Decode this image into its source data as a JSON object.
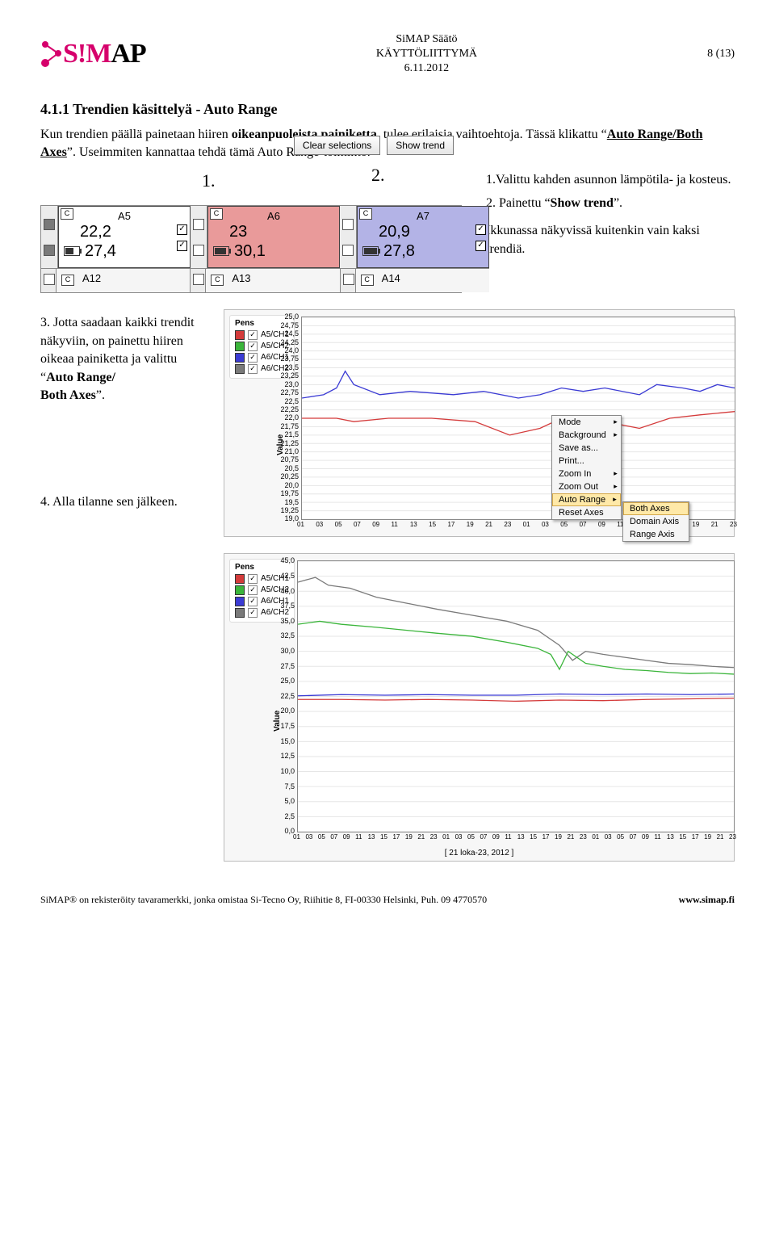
{
  "header": {
    "logo_sim": "S!M",
    "logo_ap": "AP",
    "center_title": "SiMAP Säätö",
    "center_sub": "KÄYTTÖLIITTYMÄ",
    "center_date": "6.11.2012",
    "page": "8 (13)"
  },
  "section_title": "4.1.1 Trendien käsittelyä - Auto Range",
  "intro_1a": "Kun trendien päällä painetaan hiiren ",
  "intro_1b": "oikeanpuoleista painiketta",
  "intro_1c": ", tulee erilaisia vaihtoehtoja. Tässä klikattu “",
  "intro_1d": "Auto Range/Both Axes",
  "intro_1e": "”. Useimmiten kannattaa tehdä tämä Auto Range-toiminto.",
  "annot_1": "1.",
  "annot_2": "2.",
  "right_1": "1.Valittu kahden asunnon lämpötila- ja kosteus.",
  "right_2a": "2. Painettu “",
  "right_2b": "Show trend",
  "right_2c": "”.",
  "right_3": "Ikkunassa näkyvissä kuitenkin vain kaksi trendiä.",
  "step3_a": "3. Jotta saadaan kaikki trendit näkyviin, on painettu hiiren oikeaa painiketta ja valittu “",
  "step3_b": "Auto Range/",
  "step3_c": "Both Axes",
  "step3_d": "”.",
  "step4": "4. Alla tilanne sen jälkeen.",
  "buttons": {
    "clear": "Clear selections",
    "show": "Show trend"
  },
  "cards": {
    "a5": {
      "label": "A5",
      "v1": "22,2",
      "v2": "27,4",
      "bg": "#fff",
      "bat": 0.55
    },
    "a6": {
      "label": "A6",
      "v1": "23",
      "v2": "30,1",
      "bg": "#e99a9a",
      "bat": 0.8
    },
    "a7": {
      "label": "A7",
      "v1": "20,9",
      "v2": "27,8",
      "bg": "#b3b3e6",
      "bat": 0.9
    },
    "row2": [
      "A12",
      "A13",
      "A14"
    ]
  },
  "pens": {
    "title": "Pens",
    "items": [
      {
        "label": "A5/CH1",
        "color": "#d43b3b"
      },
      {
        "label": "A5/CH2",
        "color": "#3bb53b"
      },
      {
        "label": "A6/CH1",
        "color": "#3b3bd4"
      },
      {
        "label": "A6/CH2",
        "color": "#7a7a7a"
      }
    ]
  },
  "chart1": {
    "ylabel": "Value",
    "ymin": 19.0,
    "ymax": 25.0,
    "ystep": 0.25,
    "bg": "#ffffff",
    "grid": "#e6e6e6",
    "xticks": [
      "01",
      "03",
      "05",
      "07",
      "09",
      "11",
      "13",
      "15",
      "17",
      "19",
      "21",
      "23",
      "01",
      "03",
      "05",
      "07",
      "09",
      "11",
      "13",
      "15",
      "17",
      "19",
      "21",
      "23"
    ],
    "series": [
      {
        "color": "#d43b3b",
        "pts": [
          [
            0,
            22.0
          ],
          [
            0.08,
            22.0
          ],
          [
            0.12,
            21.9
          ],
          [
            0.2,
            22.0
          ],
          [
            0.3,
            22.0
          ],
          [
            0.4,
            21.9
          ],
          [
            0.48,
            21.5
          ],
          [
            0.55,
            21.7
          ],
          [
            0.6,
            22.0
          ],
          [
            0.7,
            21.9
          ],
          [
            0.78,
            21.7
          ],
          [
            0.85,
            22.0
          ],
          [
            0.92,
            22.1
          ],
          [
            1,
            22.2
          ]
        ]
      },
      {
        "color": "#3b3bd4",
        "pts": [
          [
            0,
            22.6
          ],
          [
            0.05,
            22.7
          ],
          [
            0.08,
            22.9
          ],
          [
            0.1,
            23.4
          ],
          [
            0.12,
            23.0
          ],
          [
            0.18,
            22.7
          ],
          [
            0.25,
            22.8
          ],
          [
            0.35,
            22.7
          ],
          [
            0.42,
            22.8
          ],
          [
            0.5,
            22.6
          ],
          [
            0.55,
            22.7
          ],
          [
            0.6,
            22.9
          ],
          [
            0.65,
            22.8
          ],
          [
            0.7,
            22.9
          ],
          [
            0.78,
            22.7
          ],
          [
            0.82,
            23.0
          ],
          [
            0.88,
            22.9
          ],
          [
            0.92,
            22.8
          ],
          [
            0.96,
            23.0
          ],
          [
            1,
            22.9
          ]
        ]
      }
    ]
  },
  "menu": {
    "items": [
      "Mode",
      "Background",
      "Save as...",
      "Print...",
      "Zoom In",
      "Zoom Out",
      "Auto Range",
      "Reset Axes"
    ],
    "arrows": [
      true,
      true,
      false,
      false,
      true,
      true,
      true,
      false
    ],
    "highlight": "Auto Range",
    "sub": [
      "Both Axes",
      "Domain Axis",
      "Range Axis"
    ],
    "sub_highlight": "Both Axes"
  },
  "chart2": {
    "ylabel": "Value",
    "ymin": 0.0,
    "ymax": 45.0,
    "ystep": 2.5,
    "bg": "#ffffff",
    "grid": "#e6e6e6",
    "xlabel": "[ 21 loka-23, 2012 ]",
    "xticks": [
      "01",
      "03",
      "05",
      "07",
      "09",
      "11",
      "13",
      "15",
      "17",
      "19",
      "21",
      "23",
      "01",
      "03",
      "05",
      "07",
      "09",
      "11",
      "13",
      "15",
      "17",
      "19",
      "21",
      "23",
      "01",
      "03",
      "05",
      "07",
      "09",
      "11",
      "13",
      "15",
      "17",
      "19",
      "21",
      "23"
    ],
    "series": [
      {
        "color": "#7a7a7a",
        "pts": [
          [
            0,
            41.5
          ],
          [
            0.04,
            42.3
          ],
          [
            0.07,
            41.0
          ],
          [
            0.12,
            40.5
          ],
          [
            0.18,
            39.0
          ],
          [
            0.25,
            38.0
          ],
          [
            0.32,
            37.0
          ],
          [
            0.4,
            36.0
          ],
          [
            0.48,
            35.0
          ],
          [
            0.55,
            33.5
          ],
          [
            0.6,
            31.0
          ],
          [
            0.63,
            28.5
          ],
          [
            0.66,
            30.0
          ],
          [
            0.7,
            29.5
          ],
          [
            0.75,
            29.0
          ],
          [
            0.8,
            28.5
          ],
          [
            0.85,
            28.0
          ],
          [
            0.9,
            27.8
          ],
          [
            0.95,
            27.5
          ],
          [
            1,
            27.3
          ]
        ]
      },
      {
        "color": "#3bb53b",
        "pts": [
          [
            0,
            34.5
          ],
          [
            0.05,
            35.0
          ],
          [
            0.1,
            34.5
          ],
          [
            0.18,
            34.0
          ],
          [
            0.25,
            33.5
          ],
          [
            0.32,
            33.0
          ],
          [
            0.4,
            32.5
          ],
          [
            0.48,
            31.5
          ],
          [
            0.55,
            30.5
          ],
          [
            0.58,
            29.5
          ],
          [
            0.6,
            27.0
          ],
          [
            0.62,
            30.0
          ],
          [
            0.66,
            28.0
          ],
          [
            0.7,
            27.5
          ],
          [
            0.75,
            27.0
          ],
          [
            0.8,
            26.8
          ],
          [
            0.85,
            26.5
          ],
          [
            0.9,
            26.3
          ],
          [
            0.95,
            26.4
          ],
          [
            1,
            26.2
          ]
        ]
      },
      {
        "color": "#3b3bd4",
        "pts": [
          [
            0,
            22.6
          ],
          [
            0.1,
            22.8
          ],
          [
            0.2,
            22.7
          ],
          [
            0.3,
            22.8
          ],
          [
            0.4,
            22.7
          ],
          [
            0.5,
            22.7
          ],
          [
            0.6,
            22.9
          ],
          [
            0.7,
            22.8
          ],
          [
            0.8,
            22.9
          ],
          [
            0.9,
            22.8
          ],
          [
            1,
            22.9
          ]
        ]
      },
      {
        "color": "#d43b3b",
        "pts": [
          [
            0,
            22.0
          ],
          [
            0.1,
            22.0
          ],
          [
            0.2,
            21.9
          ],
          [
            0.3,
            22.0
          ],
          [
            0.4,
            21.9
          ],
          [
            0.5,
            21.7
          ],
          [
            0.6,
            21.9
          ],
          [
            0.7,
            21.8
          ],
          [
            0.8,
            22.0
          ],
          [
            0.9,
            22.1
          ],
          [
            1,
            22.2
          ]
        ]
      }
    ]
  },
  "footer_left": "SiMAP® on rekisteröity tavaramerkki, jonka omistaa  Si-Tecno Oy, Riihitie 8, FI-00330 Helsinki, Puh. 09 4770570",
  "footer_right": "www.simap.fi"
}
